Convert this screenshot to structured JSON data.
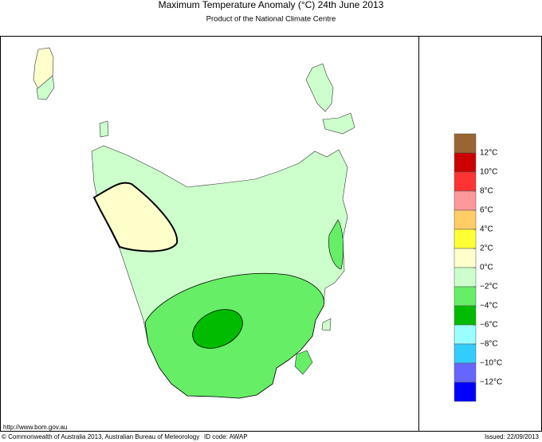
{
  "header": {
    "title": "Maximum Temperature Anomaly (°C)  24th June 2013",
    "subtitle": "Product of the National Climate Centre"
  },
  "legend": {
    "colors": [
      "#996633",
      "#cc0000",
      "#ff3333",
      "#ff9999",
      "#ffcc66",
      "#ffff33",
      "#ffffcc",
      "#ccffcc",
      "#66ee66",
      "#00bb00",
      "#99ffff",
      "#33ccff",
      "#6666ff",
      "#0000ff"
    ],
    "ticks": [
      {
        "value": 12,
        "label": "12°C"
      },
      {
        "value": 10,
        "label": "10°C"
      },
      {
        "value": 8,
        "label": "8°C"
      },
      {
        "value": 6,
        "label": "6°C"
      },
      {
        "value": 4,
        "label": "4°C"
      },
      {
        "value": 2,
        "label": "2°C"
      },
      {
        "value": 0,
        "label": "0°C"
      },
      {
        "value": -2,
        "label": "−2°C"
      },
      {
        "value": -4,
        "label": "−4°C"
      },
      {
        "value": -6,
        "label": "−6°C"
      },
      {
        "value": -8,
        "label": "−8°C"
      },
      {
        "value": -10,
        "label": "−10°C"
      },
      {
        "value": -12,
        "label": "−12°C"
      }
    ]
  },
  "footer": {
    "url": "http://www.bom.gov.au",
    "copyright": "© Commonwealth of Australia 2013, Australian Bureau of Meteorology",
    "id_code": "ID code: AWAP",
    "issued": "Issued: 22/09/2013"
  }
}
